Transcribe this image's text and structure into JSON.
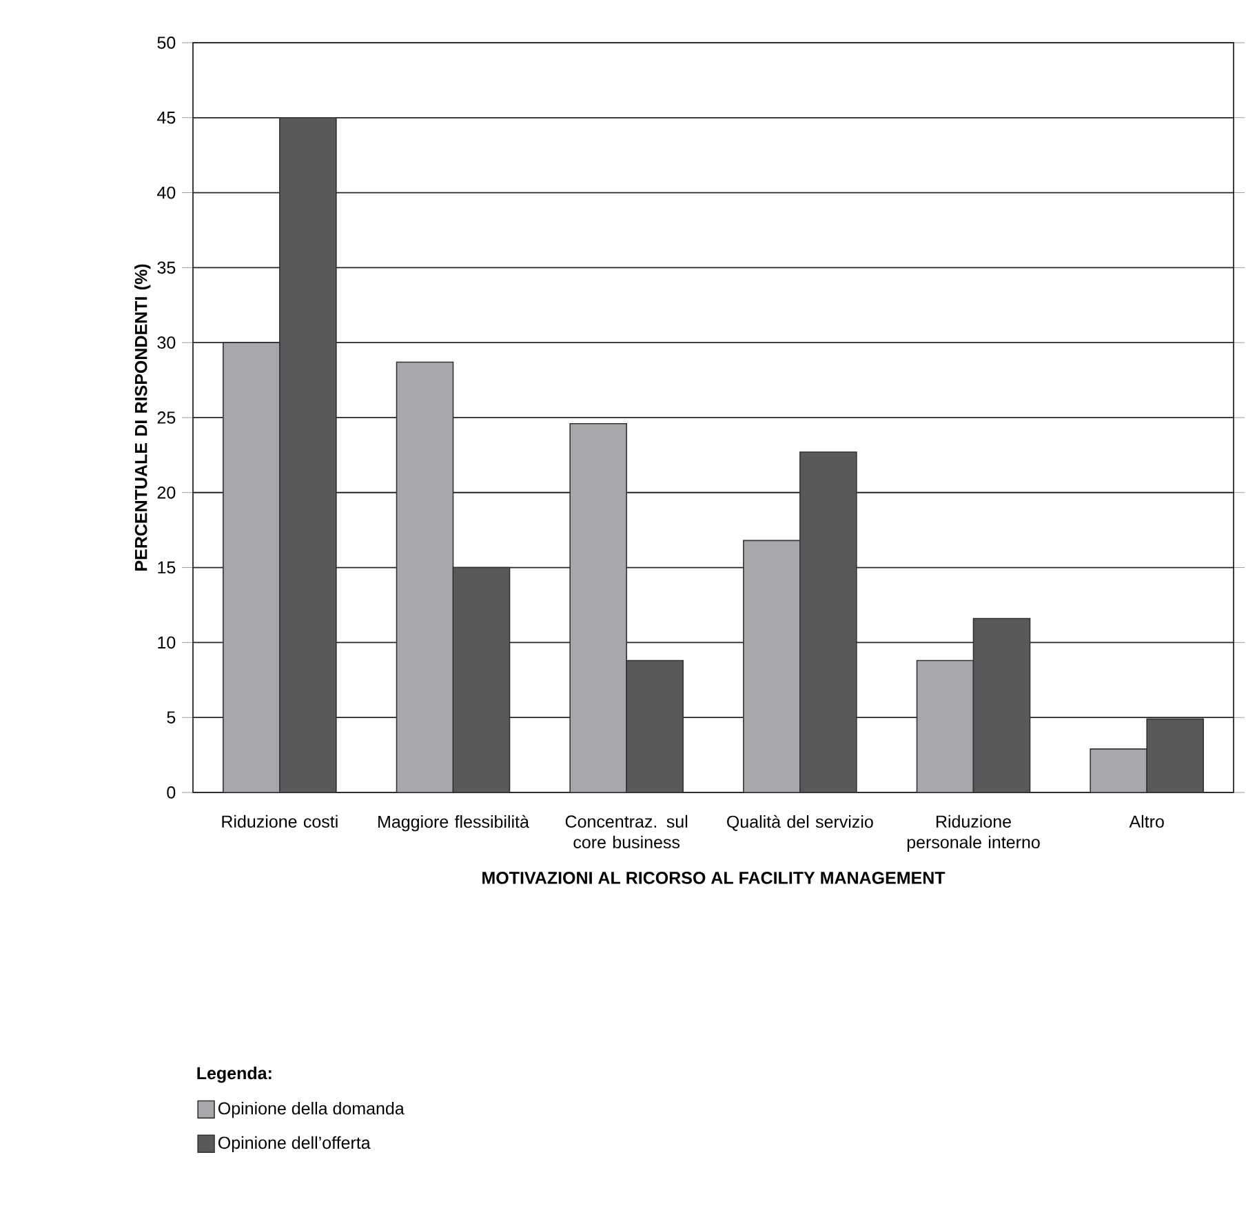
{
  "chart_data": {
    "type": "bar",
    "xlabel": "MOTIVAZIONI AL RICORSO AL FACILITY MANAGEMENT",
    "ylabel": "PERCENTUALE DI RISPONDENTI (%)",
    "legend_title": "Legenda:",
    "categories": [
      "Riduzione costi",
      "Maggiore flessibilità",
      "Concentraz. sul core business",
      "Qualità del servizio",
      "Riduzione personale interno",
      "Altro"
    ],
    "series": [
      {
        "name": "Opinione della domanda",
        "color": "#a7a8ab",
        "values": [
          30,
          28.7,
          24.6,
          16.8,
          8.8,
          2.9
        ]
      },
      {
        "name": "Opinione dell’offerta",
        "color": "#58595b",
        "values": [
          45,
          15,
          8.8,
          22.7,
          11.6,
          4.9
        ]
      }
    ],
    "ylim": [
      0,
      50
    ],
    "yticks": [
      0,
      5,
      10,
      15,
      20,
      25,
      30,
      35,
      40,
      45,
      50
    ],
    "grid": "y",
    "legend": "bottom"
  }
}
